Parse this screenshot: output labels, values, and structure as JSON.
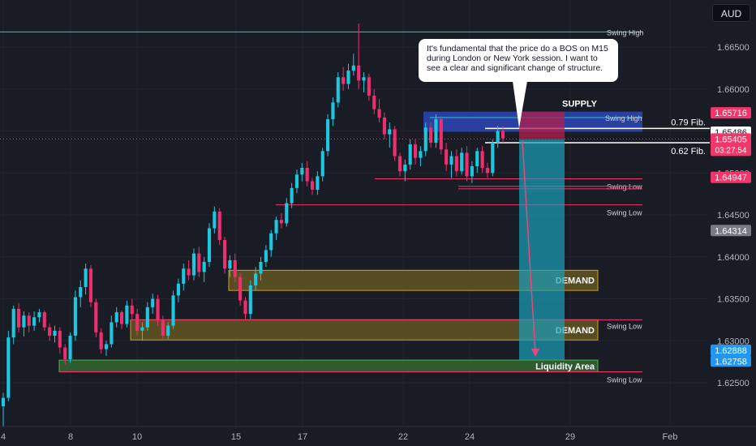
{
  "toolbar": {
    "currency": "AUD"
  },
  "callout": {
    "text": "It's fundamental that the price do a BOS on M15 during London or New York session. I want to see a clear and significant change of structure."
  },
  "chart_data": {
    "type": "candlestick",
    "x_ticks": [
      "4",
      "8",
      "10",
      "15",
      "17",
      "22",
      "24",
      "29",
      "Feb"
    ],
    "y_ticks": [
      1.625,
      1.63,
      1.635,
      1.64,
      1.645,
      1.65,
      1.655,
      1.66,
      1.665
    ],
    "y_tick_labels": [
      "1.62500",
      "1.63000",
      "1.63500",
      "1.64000",
      "1.64500",
      "1.65000",
      "1.65500",
      "1.66000",
      "1.66500"
    ],
    "ylim": [
      1.6215,
      1.6695
    ],
    "price_badges": [
      {
        "value": 1.65716,
        "label": "1.65716",
        "color": "#f23669"
      },
      {
        "value": 1.65486,
        "label": "1.65486",
        "color": "#ffffff"
      },
      {
        "value": 1.65405,
        "label": "1.65405",
        "sub": "03:27:54",
        "color": "#f23669"
      },
      {
        "value": 1.64947,
        "label": "1.64947",
        "color": "#f23669"
      },
      {
        "value": 1.64314,
        "label": "1.64314",
        "color": "#787b86"
      },
      {
        "value": 1.62888,
        "label": "1.62888",
        "color": "#2196f3"
      },
      {
        "value": 1.62758,
        "label": "1.62758",
        "color": "#2196f3"
      }
    ],
    "annotations": {
      "swing_labels": [
        {
          "text": "Swing High",
          "price": 1.6668
        },
        {
          "text": "Swing High",
          "price": 1.6566
        },
        {
          "text": "Swing Low",
          "price": 1.6493
        },
        {
          "text": "Swing Low",
          "price": 1.6462
        },
        {
          "text": "Swing Low",
          "price": 1.6325
        },
        {
          "text": "Swing Low",
          "price": 1.6263
        }
      ],
      "fib_levels": [
        {
          "text": "0.79 Fib.",
          "price": 1.6553
        },
        {
          "text": "0.62 Fib.",
          "price": 1.6536
        }
      ],
      "zones": [
        {
          "text": "SUPPLY",
          "top": 1.6573,
          "bottom": 1.6549,
          "color": "#2962ff"
        },
        {
          "text": "DEMAND",
          "top": 1.6384,
          "bottom": 1.636,
          "color": "#c9a227"
        },
        {
          "text": "DEMAND",
          "top": 1.6325,
          "bottom": 1.6301,
          "color": "#c9a227"
        },
        {
          "text": "Liquidity Area",
          "top": 1.6277,
          "bottom": 1.6263,
          "color": "#4caf50"
        }
      ]
    },
    "candles": [
      [
        1.6222,
        1.6238,
        1.6198,
        1.6232
      ],
      [
        1.6232,
        1.6312,
        1.6228,
        1.6304
      ],
      [
        1.6304,
        1.6342,
        1.6296,
        1.6338
      ],
      [
        1.6338,
        1.6345,
        1.631,
        1.6316
      ],
      [
        1.6316,
        1.6335,
        1.6305,
        1.633
      ],
      [
        1.633,
        1.6334,
        1.631,
        1.6318
      ],
      [
        1.6318,
        1.6335,
        1.6312,
        1.6328
      ],
      [
        1.6328,
        1.6338,
        1.6322,
        1.6334
      ],
      [
        1.6334,
        1.6336,
        1.6312,
        1.6316
      ],
      [
        1.6316,
        1.632,
        1.63,
        1.6306
      ],
      [
        1.6306,
        1.6318,
        1.6298,
        1.6312
      ],
      [
        1.6312,
        1.6316,
        1.6285,
        1.6292
      ],
      [
        1.6292,
        1.6296,
        1.6272,
        1.6278
      ],
      [
        1.6278,
        1.631,
        1.6274,
        1.6306
      ],
      [
        1.6306,
        1.636,
        1.63,
        1.6352
      ],
      [
        1.6352,
        1.6372,
        1.634,
        1.6364
      ],
      [
        1.6364,
        1.6392,
        1.6355,
        1.6386
      ],
      [
        1.6386,
        1.639,
        1.634,
        1.6346
      ],
      [
        1.6346,
        1.635,
        1.6304,
        1.631
      ],
      [
        1.631,
        1.6315,
        1.6285,
        1.629
      ],
      [
        1.629,
        1.63,
        1.6282,
        1.6296
      ],
      [
        1.6296,
        1.633,
        1.6292,
        1.6322
      ],
      [
        1.6322,
        1.634,
        1.6316,
        1.6334
      ],
      [
        1.6334,
        1.6336,
        1.6314,
        1.632
      ],
      [
        1.632,
        1.6348,
        1.6316,
        1.6342
      ],
      [
        1.6342,
        1.635,
        1.6326,
        1.6332
      ],
      [
        1.6332,
        1.6338,
        1.6306,
        1.6312
      ],
      [
        1.6312,
        1.6322,
        1.63,
        1.6316
      ],
      [
        1.6316,
        1.6346,
        1.6312,
        1.634
      ],
      [
        1.634,
        1.6356,
        1.6332,
        1.635
      ],
      [
        1.635,
        1.6355,
        1.6318,
        1.6324
      ],
      [
        1.6324,
        1.633,
        1.6302,
        1.6306
      ],
      [
        1.6306,
        1.6322,
        1.6302,
        1.6318
      ],
      [
        1.6318,
        1.636,
        1.6314,
        1.6354
      ],
      [
        1.6354,
        1.6374,
        1.6346,
        1.6368
      ],
      [
        1.6368,
        1.6392,
        1.636,
        1.6386
      ],
      [
        1.6386,
        1.6396,
        1.6372,
        1.6378
      ],
      [
        1.6378,
        1.641,
        1.6372,
        1.6404
      ],
      [
        1.6404,
        1.6412,
        1.6376,
        1.6382
      ],
      [
        1.6382,
        1.64,
        1.637,
        1.6394
      ],
      [
        1.6394,
        1.644,
        1.6388,
        1.6434
      ],
      [
        1.6434,
        1.646,
        1.6428,
        1.6454
      ],
      [
        1.6454,
        1.6458,
        1.6414,
        1.642
      ],
      [
        1.642,
        1.6424,
        1.638,
        1.6386
      ],
      [
        1.6386,
        1.6402,
        1.6376,
        1.6396
      ],
      [
        1.6396,
        1.6404,
        1.637,
        1.6376
      ],
      [
        1.6376,
        1.638,
        1.6342,
        1.6348
      ],
      [
        1.6348,
        1.6352,
        1.6326,
        1.6332
      ],
      [
        1.6332,
        1.6372,
        1.6326,
        1.6366
      ],
      [
        1.6366,
        1.6388,
        1.636,
        1.638
      ],
      [
        1.638,
        1.64,
        1.6372,
        1.6394
      ],
      [
        1.6394,
        1.6414,
        1.6388,
        1.6408
      ],
      [
        1.6408,
        1.6432,
        1.64,
        1.6428
      ],
      [
        1.6428,
        1.6448,
        1.642,
        1.6444
      ],
      [
        1.6444,
        1.6452,
        1.6434,
        1.644
      ],
      [
        1.644,
        1.647,
        1.6436,
        1.6464
      ],
      [
        1.6464,
        1.6488,
        1.6458,
        1.6482
      ],
      [
        1.6482,
        1.6504,
        1.6476,
        1.6498
      ],
      [
        1.6498,
        1.6512,
        1.649,
        1.6506
      ],
      [
        1.6506,
        1.6514,
        1.6484,
        1.649
      ],
      [
        1.649,
        1.6494,
        1.6474,
        1.648
      ],
      [
        1.648,
        1.6502,
        1.6474,
        1.6496
      ],
      [
        1.6496,
        1.653,
        1.649,
        1.6526
      ],
      [
        1.6526,
        1.657,
        1.652,
        1.6564
      ],
      [
        1.6564,
        1.659,
        1.6556,
        1.6584
      ],
      [
        1.6584,
        1.662,
        1.6578,
        1.6614
      ],
      [
        1.6614,
        1.6626,
        1.6598,
        1.6606
      ],
      [
        1.6606,
        1.663,
        1.66,
        1.6622
      ],
      [
        1.6622,
        1.6642,
        1.6616,
        1.6628
      ],
      [
        1.6628,
        1.6678,
        1.66,
        1.661
      ],
      [
        1.661,
        1.662,
        1.6596,
        1.6614
      ],
      [
        1.6614,
        1.6618,
        1.6586,
        1.6592
      ],
      [
        1.6592,
        1.66,
        1.657,
        1.6576
      ],
      [
        1.6576,
        1.6588,
        1.656,
        1.6566
      ],
      [
        1.6566,
        1.6572,
        1.654,
        1.6546
      ],
      [
        1.6546,
        1.656,
        1.653,
        1.6552
      ],
      [
        1.6552,
        1.6556,
        1.6514,
        1.652
      ],
      [
        1.652,
        1.6524,
        1.6496,
        1.6502
      ],
      [
        1.6502,
        1.6516,
        1.649,
        1.651
      ],
      [
        1.651,
        1.654,
        1.6504,
        1.6534
      ],
      [
        1.6534,
        1.654,
        1.651,
        1.6518
      ],
      [
        1.6518,
        1.6532,
        1.6508,
        1.6526
      ],
      [
        1.6526,
        1.656,
        1.652,
        1.6554
      ],
      [
        1.6554,
        1.656,
        1.653,
        1.6536
      ],
      [
        1.6536,
        1.657,
        1.653,
        1.6564
      ],
      [
        1.6564,
        1.6568,
        1.6522,
        1.6528
      ],
      [
        1.6528,
        1.6536,
        1.6502,
        1.651
      ],
      [
        1.651,
        1.6526,
        1.6494,
        1.652
      ],
      [
        1.652,
        1.6528,
        1.6496,
        1.6502
      ],
      [
        1.6502,
        1.653,
        1.6498,
        1.6524
      ],
      [
        1.6524,
        1.6532,
        1.649,
        1.6496
      ],
      [
        1.6496,
        1.6514,
        1.6488,
        1.6508
      ],
      [
        1.6508,
        1.653,
        1.65,
        1.6526
      ],
      [
        1.6526,
        1.6532,
        1.65,
        1.6506
      ],
      [
        1.6506,
        1.6512,
        1.6494,
        1.65
      ],
      [
        1.65,
        1.654,
        1.6496,
        1.6536
      ],
      [
        1.6536,
        1.6556,
        1.653,
        1.655
      ],
      [
        1.655,
        1.6556,
        1.6536,
        1.6541
      ]
    ]
  }
}
